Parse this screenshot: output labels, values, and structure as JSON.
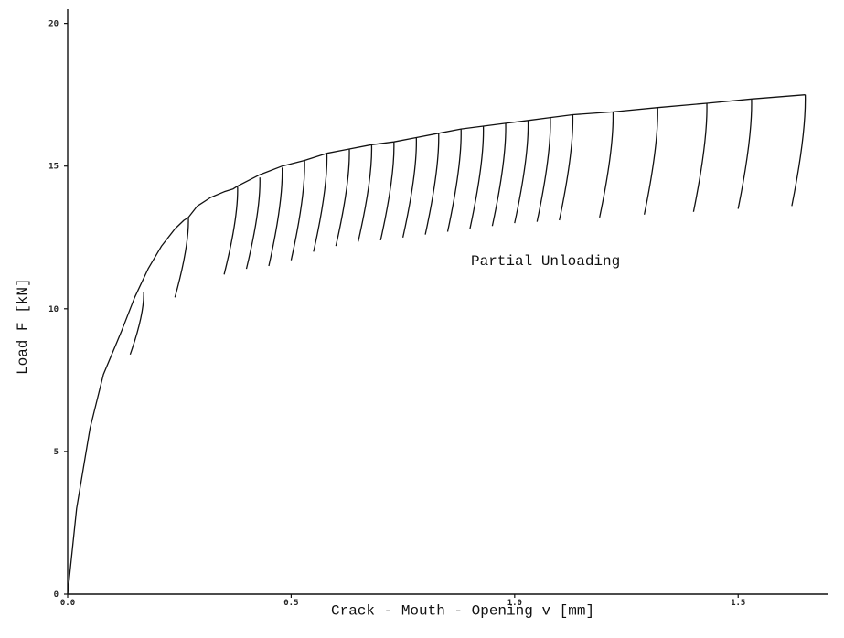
{
  "chart_data": {
    "type": "line",
    "xlabel": "Crack - Mouth - Opening v [mm]",
    "ylabel": "Load F [kN]",
    "annotation": "Partial Unloading",
    "xlim": [
      0,
      1.7
    ],
    "ylim": [
      0,
      20.5
    ],
    "xticks": [
      0,
      0.5,
      1.0,
      1.5
    ],
    "xtick_labels": [
      "0.0",
      "0.5",
      "1.0",
      "1.5"
    ],
    "yticks": [
      0,
      5,
      10,
      15,
      20
    ],
    "ytick_labels": [
      "0",
      "5",
      "10",
      "15",
      "20"
    ],
    "grid": false,
    "envelope": {
      "x": [
        0,
        0.02,
        0.05,
        0.08,
        0.12,
        0.15,
        0.18,
        0.21,
        0.24,
        0.26,
        0.27,
        0.29,
        0.32,
        0.35,
        0.37,
        0.38,
        0.43,
        0.48,
        0.53,
        0.58,
        0.63,
        0.68,
        0.73,
        0.78,
        0.83,
        0.88,
        0.93,
        0.98,
        1.03,
        1.08,
        1.13,
        1.22,
        1.32,
        1.43,
        1.53,
        1.65
      ],
      "y": [
        0,
        3.0,
        5.8,
        7.7,
        9.2,
        10.4,
        11.4,
        12.2,
        12.8,
        13.1,
        13.2,
        13.6,
        13.9,
        14.1,
        14.2,
        14.3,
        14.7,
        15.0,
        15.2,
        15.45,
        15.6,
        15.75,
        15.85,
        16.0,
        16.15,
        16.3,
        16.4,
        16.5,
        16.6,
        16.7,
        16.8,
        16.9,
        17.05,
        17.2,
        17.35,
        17.5
      ]
    },
    "unloading_cycles": [
      {
        "peak": [
          0.17,
          10.6
        ],
        "min": [
          0.14,
          8.4
        ]
      },
      {
        "peak": [
          0.27,
          13.2
        ],
        "min": [
          0.24,
          10.4
        ]
      },
      {
        "peak": [
          0.38,
          14.3
        ],
        "min": [
          0.35,
          11.2
        ]
      },
      {
        "peak": [
          0.43,
          14.6
        ],
        "min": [
          0.4,
          11.4
        ]
      },
      {
        "peak": [
          0.48,
          14.95
        ],
        "min": [
          0.45,
          11.5
        ]
      },
      {
        "peak": [
          0.53,
          15.2
        ],
        "min": [
          0.5,
          11.7
        ]
      },
      {
        "peak": [
          0.58,
          15.45
        ],
        "min": [
          0.55,
          12.0
        ]
      },
      {
        "peak": [
          0.63,
          15.6
        ],
        "min": [
          0.6,
          12.2
        ]
      },
      {
        "peak": [
          0.68,
          15.75
        ],
        "min": [
          0.65,
          12.35
        ]
      },
      {
        "peak": [
          0.73,
          15.85
        ],
        "min": [
          0.7,
          12.4
        ]
      },
      {
        "peak": [
          0.78,
          16.0
        ],
        "min": [
          0.75,
          12.5
        ]
      },
      {
        "peak": [
          0.83,
          16.15
        ],
        "min": [
          0.8,
          12.6
        ]
      },
      {
        "peak": [
          0.88,
          16.3
        ],
        "min": [
          0.85,
          12.7
        ]
      },
      {
        "peak": [
          0.93,
          16.4
        ],
        "min": [
          0.9,
          12.8
        ]
      },
      {
        "peak": [
          0.98,
          16.5
        ],
        "min": [
          0.95,
          12.9
        ]
      },
      {
        "peak": [
          1.03,
          16.6
        ],
        "min": [
          1.0,
          13.0
        ]
      },
      {
        "peak": [
          1.08,
          16.7
        ],
        "min": [
          1.05,
          13.05
        ]
      },
      {
        "peak": [
          1.13,
          16.8
        ],
        "min": [
          1.1,
          13.1
        ]
      },
      {
        "peak": [
          1.22,
          16.9
        ],
        "min": [
          1.19,
          13.2
        ]
      },
      {
        "peak": [
          1.32,
          17.05
        ],
        "min": [
          1.29,
          13.3
        ]
      },
      {
        "peak": [
          1.43,
          17.2
        ],
        "min": [
          1.4,
          13.4
        ]
      },
      {
        "peak": [
          1.53,
          17.35
        ],
        "min": [
          1.5,
          13.5
        ]
      },
      {
        "peak": [
          1.65,
          17.5
        ],
        "min": [
          1.62,
          13.6
        ]
      }
    ]
  }
}
